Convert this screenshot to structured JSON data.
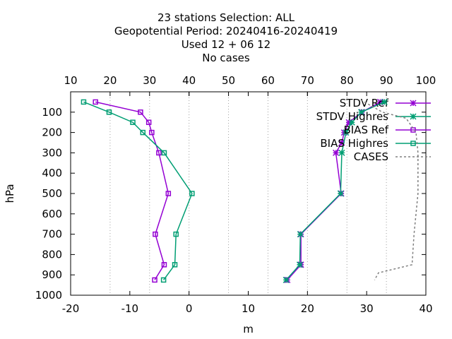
{
  "title_lines": [
    "23 stations Selection: ALL",
    "Geopotential  Period: 20240416-20240419",
    "Used  12 + 06 12",
    "No cases"
  ],
  "chart_data": {
    "type": "line",
    "xlabel": "m",
    "ylabel": "hPa",
    "xlim": [
      -20,
      40
    ],
    "ylim": [
      1000,
      0
    ],
    "xticks": [
      "-20",
      "-10",
      "0",
      "10",
      "20",
      "30",
      "40"
    ],
    "x2lim": [
      10,
      100
    ],
    "x2ticks": [
      "10",
      "20",
      "30",
      "40",
      "50",
      "60",
      "70",
      "80",
      "90",
      "100"
    ],
    "yticks": [
      "100",
      "200",
      "300",
      "400",
      "500",
      "600",
      "700",
      "800",
      "900",
      "1000"
    ],
    "grid_x": true,
    "legend_position": "top-right",
    "series": [
      {
        "name": "STDV Ref",
        "color": "#9400d3",
        "marker": "star",
        "axis": "bottom",
        "points": [
          [
            32.3,
            50
          ],
          [
            29.2,
            100
          ],
          [
            27.0,
            150
          ],
          [
            26.2,
            200
          ],
          [
            25.8,
            250
          ],
          [
            24.8,
            300
          ],
          [
            25.7,
            500
          ],
          [
            18.9,
            700
          ],
          [
            18.9,
            850
          ],
          [
            16.6,
            925
          ]
        ]
      },
      {
        "name": "STDV Highres",
        "color": "#009e73",
        "marker": "star",
        "axis": "bottom",
        "points": [
          [
            33.0,
            50
          ],
          [
            29.1,
            100
          ],
          [
            27.5,
            150
          ],
          [
            26.5,
            200
          ],
          [
            25.8,
            300
          ],
          [
            25.6,
            500
          ],
          [
            18.8,
            700
          ],
          [
            18.7,
            850
          ],
          [
            16.4,
            925
          ]
        ]
      },
      {
        "name": "BIAS Ref",
        "color": "#9400d3",
        "marker": "square",
        "axis": "bottom",
        "points": [
          [
            -15.8,
            50
          ],
          [
            -8.2,
            100
          ],
          [
            -6.8,
            150
          ],
          [
            -6.3,
            200
          ],
          [
            -5.1,
            300
          ],
          [
            -3.5,
            500
          ],
          [
            -5.7,
            700
          ],
          [
            -4.2,
            850
          ],
          [
            -5.8,
            925
          ]
        ]
      },
      {
        "name": "BIAS Highres",
        "color": "#009e73",
        "marker": "square",
        "axis": "bottom",
        "points": [
          [
            -17.8,
            50
          ],
          [
            -13.5,
            100
          ],
          [
            -9.5,
            150
          ],
          [
            -7.8,
            200
          ],
          [
            -4.2,
            300
          ],
          [
            0.5,
            500
          ],
          [
            -2.2,
            700
          ],
          [
            -2.4,
            850
          ],
          [
            -4.3,
            925
          ]
        ]
      },
      {
        "name": "CASES",
        "color": "#808080",
        "marker": "none",
        "dashed": true,
        "axis": "top",
        "points": [
          [
            83.5,
            40
          ],
          [
            89,
            100
          ],
          [
            95,
            130
          ],
          [
            97.5,
            200
          ],
          [
            98,
            300
          ],
          [
            98,
            500
          ],
          [
            97,
            700
          ],
          [
            96.5,
            850
          ],
          [
            88,
            890
          ],
          [
            87,
            925
          ]
        ]
      }
    ]
  }
}
